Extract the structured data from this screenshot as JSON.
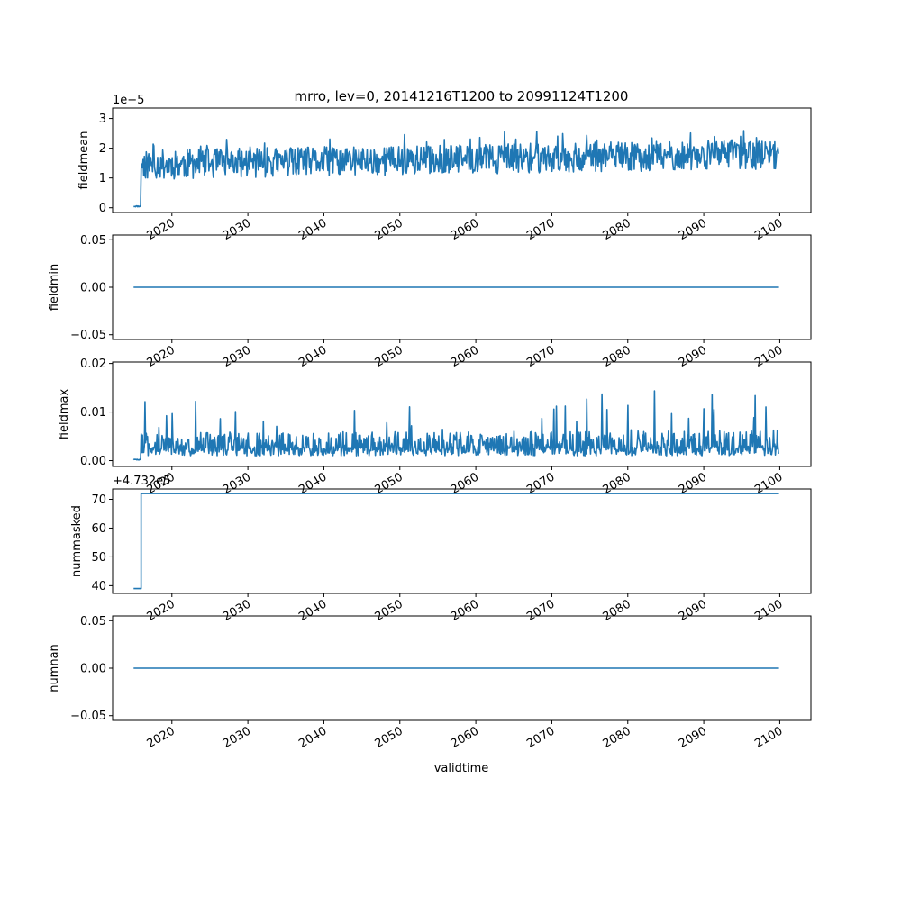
{
  "figure": {
    "title": "mrro, lev=0, 20141216T1200 to 20991124T1200",
    "xlabel": "validtime"
  },
  "colors": {
    "line": "#1f77b4",
    "axes": "#000000",
    "background": "#ffffff"
  },
  "chart_data": [
    {
      "type": "line",
      "ylabel": "fieldmean",
      "offset_text": "1e−5",
      "ylim": [
        -0.16,
        3.35
      ],
      "yticks": [
        0,
        1,
        2,
        3
      ],
      "ytick_labels": [
        "0",
        "1",
        "2",
        "3"
      ],
      "xlim": [
        2012.2,
        2104.1
      ],
      "xticks": [
        2020,
        2030,
        2040,
        2050,
        2060,
        2070,
        2080,
        2090,
        2100
      ],
      "xtick_labels": [
        "2020",
        "2030",
        "2040",
        "2050",
        "2060",
        "2070",
        "2080",
        "2090",
        "2100"
      ],
      "x_range": [
        2014.96,
        2099.9
      ],
      "pattern": {
        "start": 2014.96,
        "end": 2099.9,
        "step": 0.0833,
        "early": {
          "until": 2015.9,
          "level": 0.05,
          "amp": 0.04
        },
        "base_start": 1.45,
        "base_end": 1.8,
        "amp": 0.5,
        "spike_prob": 0.05,
        "spike_amp": 0.9,
        "floor": 0.75,
        "cap": 3.25,
        "seed": 11
      },
      "series": [
        {
          "values_note": "",
          "x": [],
          "y": []
        }
      ]
    },
    {
      "type": "line",
      "ylabel": "fieldmin",
      "offset_text": "",
      "ylim": [
        -0.055,
        0.055
      ],
      "yticks": [
        -0.05,
        0.0,
        0.05
      ],
      "ytick_labels": [
        "−0.05",
        "0.00",
        "0.05"
      ],
      "xlim": [
        2012.2,
        2104.1
      ],
      "xticks": [
        2020,
        2030,
        2040,
        2050,
        2060,
        2070,
        2080,
        2090,
        2100
      ],
      "xtick_labels": [
        "2020",
        "2030",
        "2040",
        "2050",
        "2060",
        "2070",
        "2080",
        "2090",
        "2100"
      ],
      "series": [
        {
          "x": [
            2014.96,
            2099.9
          ],
          "y": [
            0.0,
            0.0
          ]
        }
      ]
    },
    {
      "type": "line",
      "ylabel": "fieldmax",
      "offset_text": "",
      "ylim": [
        -0.0012,
        0.0203
      ],
      "yticks": [
        0.0,
        0.01,
        0.02
      ],
      "ytick_labels": [
        "0.00",
        "0.01",
        "0.02"
      ],
      "xlim": [
        2012.2,
        2104.1
      ],
      "xticks": [
        2020,
        2030,
        2040,
        2050,
        2060,
        2070,
        2080,
        2090,
        2100
      ],
      "xtick_labels": [
        "2020",
        "2030",
        "2040",
        "2050",
        "2060",
        "2070",
        "2080",
        "2090",
        "2100"
      ],
      "pattern": {
        "start": 2014.96,
        "end": 2099.9,
        "step": 0.0833,
        "early": {
          "until": 2015.9,
          "level": 0.0002,
          "amp": 0.0002
        },
        "base_start": 0.004,
        "base_end": 0.0045,
        "amp": 0.0025,
        "spike_prob": 0.04,
        "spike_amp": 0.01,
        "floor": 0.001,
        "cap": 0.0192,
        "seed": 29,
        "low_swing": true
      },
      "series": [
        {
          "x": [],
          "y": []
        }
      ]
    },
    {
      "type": "line",
      "ylabel": "nummasked",
      "offset_text": "+4.732e5",
      "ylim": [
        37.3,
        73.6
      ],
      "yticks": [
        40,
        50,
        60,
        70
      ],
      "ytick_labels": [
        "40",
        "50",
        "60",
        "70"
      ],
      "xlim": [
        2012.2,
        2104.1
      ],
      "xticks": [
        2020,
        2030,
        2040,
        2050,
        2060,
        2070,
        2080,
        2090,
        2100
      ],
      "xtick_labels": [
        "2020",
        "2030",
        "2040",
        "2050",
        "2060",
        "2070",
        "2080",
        "2090",
        "2100"
      ],
      "series": [
        {
          "x": [
            2014.96,
            2015.95,
            2015.95,
            2099.9
          ],
          "y": [
            39,
            39,
            72,
            72
          ]
        }
      ]
    },
    {
      "type": "line",
      "ylabel": "numnan",
      "offset_text": "",
      "ylim": [
        -0.055,
        0.055
      ],
      "yticks": [
        -0.05,
        0.0,
        0.05
      ],
      "ytick_labels": [
        "−0.05",
        "0.00",
        "0.05"
      ],
      "xlim": [
        2012.2,
        2104.1
      ],
      "xticks": [
        2020,
        2030,
        2040,
        2050,
        2060,
        2070,
        2080,
        2090,
        2100
      ],
      "xtick_labels": [
        "2020",
        "2030",
        "2040",
        "2050",
        "2060",
        "2070",
        "2080",
        "2090",
        "2100"
      ],
      "series": [
        {
          "x": [
            2014.96,
            2099.9
          ],
          "y": [
            0.0,
            0.0
          ]
        }
      ]
    }
  ]
}
